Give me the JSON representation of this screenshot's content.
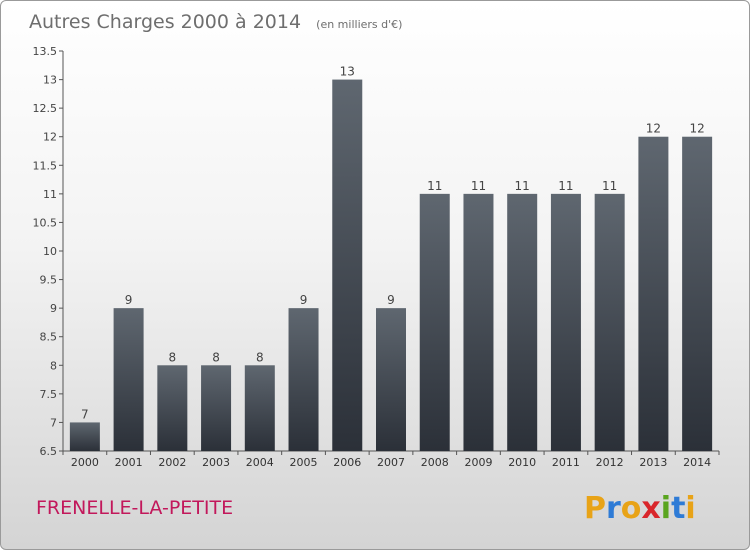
{
  "chart_data": {
    "type": "bar",
    "title": "Autres Charges 2000 à 2014",
    "subtitle": "(en milliers d'€)",
    "categories": [
      "2000",
      "2001",
      "2002",
      "2003",
      "2004",
      "2005",
      "2006",
      "2007",
      "2008",
      "2009",
      "2010",
      "2011",
      "2012",
      "2013",
      "2014"
    ],
    "values": [
      7,
      9,
      8,
      8,
      8,
      9,
      13,
      9,
      11,
      11,
      11,
      11,
      11,
      12,
      12
    ],
    "ylim": [
      6.5,
      13.5
    ],
    "yticks": [
      "6.5",
      "7",
      "7.5",
      "8",
      "8.5",
      "9",
      "9.5",
      "10",
      "10.5",
      "11",
      "11.5",
      "12",
      "12.5",
      "13",
      "13.5"
    ],
    "grid": false,
    "bar_color_top": "#5f6770",
    "bar_color_bottom": "#2b3038"
  },
  "footer": {
    "commune": "FRENELLE-LA-PETITE",
    "brand": [
      "P",
      "r",
      "o",
      "x",
      "i",
      "t",
      "i"
    ],
    "brand_colors": [
      "#e8a317",
      "#2e7bd6",
      "#e8a317",
      "#d9262b",
      "#5aa51f",
      "#2e7bd6",
      "#e8a317"
    ]
  }
}
